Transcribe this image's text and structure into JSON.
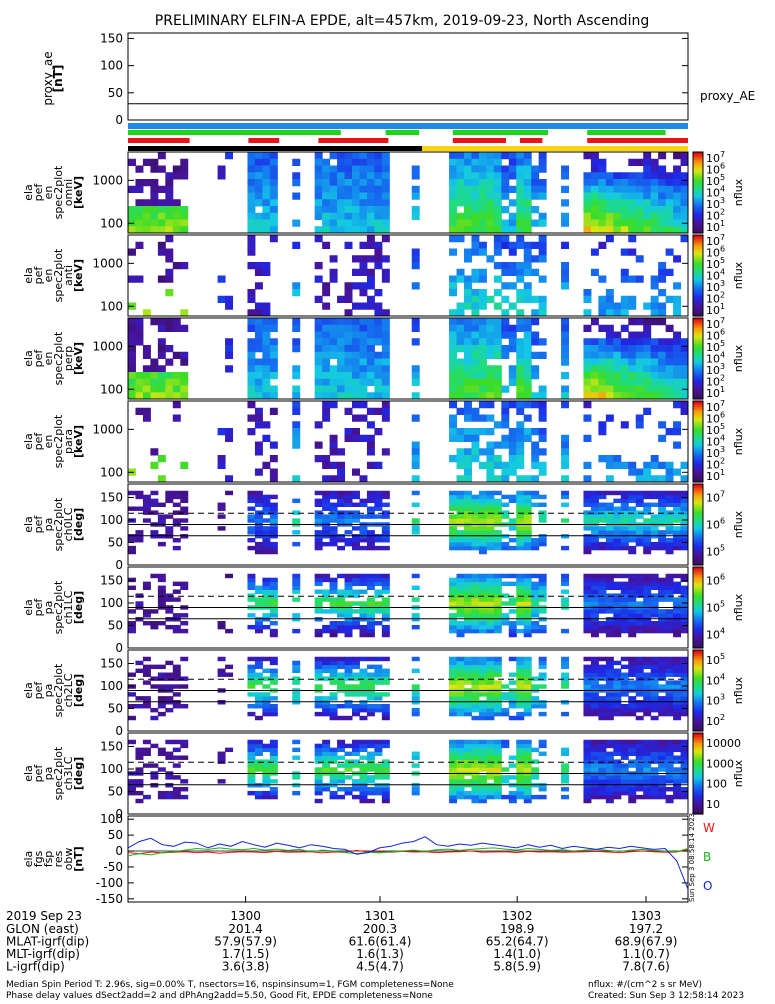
{
  "title": "PRELIMINARY ELFIN-A EPDE, alt=457km, 2019-09-23, North Ascending",
  "colors": {
    "red": "#e8141a",
    "green": "#22d418",
    "blue": "#1e8ce6",
    "black": "#000000",
    "yellow": "#ffd400",
    "trace_w": "#e8141a",
    "trace_b": "#1ab41a",
    "trace_o": "#1424d8"
  },
  "chart_data": [
    {
      "type": "line",
      "panel": "proxy_ae",
      "ylabel_lines": [
        "proxy_ae",
        "[nT]"
      ],
      "yticks": [
        "150",
        "100",
        "50",
        "0"
      ],
      "ylim": [
        0,
        150
      ],
      "series": [
        {
          "name": "proxy_AE",
          "values": [
            30,
            30
          ]
        }
      ]
    },
    {
      "type": "heatmap",
      "panel": "ela_pef_en_spec2plot_omni",
      "ylabel_lines": [
        "ela",
        "pef",
        "en",
        "spec2plot",
        "omni",
        "[keV]"
      ],
      "yticks": [
        "1000",
        "100"
      ],
      "scale": "log",
      "colorbar": {
        "label": "nflux",
        "ticks": [
          "10",
          "10",
          "10",
          "10",
          "10",
          "10",
          "10"
        ],
        "exps": [
          "1",
          "2",
          "3",
          "4",
          "5",
          "6",
          "7"
        ]
      }
    },
    {
      "type": "heatmap",
      "panel": "ela_pef_en_spec2plot_anti",
      "ylabel_lines": [
        "ela",
        "pef",
        "en",
        "spec2plot",
        "anti",
        "[keV]"
      ],
      "yticks": [
        "1000",
        "100"
      ],
      "scale": "log",
      "colorbar": {
        "label": "nflux",
        "ticks": [
          "10",
          "10",
          "10",
          "10",
          "10",
          "10",
          "10"
        ],
        "exps": [
          "1",
          "2",
          "3",
          "4",
          "5",
          "6",
          "7"
        ]
      }
    },
    {
      "type": "heatmap",
      "panel": "ela_pef_en_spec2plot_perp",
      "ylabel_lines": [
        "ela",
        "pef",
        "en",
        "spec2plot",
        "perp",
        "[keV]"
      ],
      "yticks": [
        "1000",
        "100"
      ],
      "scale": "log",
      "colorbar": {
        "label": "nflux",
        "ticks": [
          "10",
          "10",
          "10",
          "10",
          "10",
          "10",
          "10"
        ],
        "exps": [
          "1",
          "2",
          "3",
          "4",
          "5",
          "6",
          "7"
        ]
      }
    },
    {
      "type": "heatmap",
      "panel": "ela_pef_en_spec2plot_para",
      "ylabel_lines": [
        "ela",
        "pef",
        "en",
        "spec2plot",
        "para",
        "[keV]"
      ],
      "yticks": [
        "1000",
        "100"
      ],
      "scale": "log",
      "colorbar": {
        "label": "nflux",
        "ticks": [
          "10",
          "10",
          "10",
          "10",
          "10",
          "10",
          "10"
        ],
        "exps": [
          "1",
          "2",
          "3",
          "4",
          "5",
          "6",
          "7"
        ]
      }
    },
    {
      "type": "heatmap",
      "panel": "ela_pef_pa_spec2plot_ch0LC",
      "ylabel_lines": [
        "ela",
        "pef",
        "pa",
        "spec2plot",
        "ch0LC",
        "[deg]"
      ],
      "yticks": [
        "150",
        "100",
        "50",
        "0"
      ],
      "ylim": [
        0,
        180
      ],
      "colorbar": {
        "label": "nflux",
        "ticks": [
          "10",
          "10",
          "10"
        ],
        "exps": [
          "7",
          "6",
          "5"
        ]
      }
    },
    {
      "type": "heatmap",
      "panel": "ela_pef_pa_spec2plot_ch1LC",
      "ylabel_lines": [
        "ela",
        "pef",
        "pa",
        "spec2plot",
        "ch1LC",
        "[deg]"
      ],
      "yticks": [
        "150",
        "100",
        "50",
        "0"
      ],
      "ylim": [
        0,
        180
      ],
      "colorbar": {
        "label": "nflux",
        "ticks": [
          "10",
          "10",
          "10"
        ],
        "exps": [
          "6",
          "5",
          "4"
        ]
      }
    },
    {
      "type": "heatmap",
      "panel": "ela_pef_pa_spec2plot_ch2LC",
      "ylabel_lines": [
        "ela",
        "pef",
        "pa",
        "spec2plot",
        "ch2LC",
        "[deg]"
      ],
      "yticks": [
        "150",
        "100",
        "50",
        "0"
      ],
      "ylim": [
        0,
        180
      ],
      "colorbar": {
        "label": "nflux",
        "ticks": [
          "10",
          "10",
          "10",
          "10"
        ],
        "exps": [
          "5",
          "4",
          "3",
          "2"
        ]
      }
    },
    {
      "type": "heatmap",
      "panel": "ela_pef_pa_spec2plot_ch3LC",
      "ylabel_lines": [
        "ela",
        "pef",
        "pa",
        "spec2plot",
        "ch3LC",
        "[deg]"
      ],
      "yticks": [
        "150",
        "100",
        "50",
        "0"
      ],
      "ylim": [
        0,
        180
      ],
      "colorbar": {
        "label": "nflux",
        "ticks": [
          "10000",
          "1000",
          "100",
          "10"
        ],
        "exps": []
      }
    },
    {
      "type": "line",
      "panel": "ela_fgs_fsp_res_obw",
      "ylabel_lines": [
        "ela",
        "fgs",
        "fsp",
        "res",
        "obw",
        "[nT]"
      ],
      "yticks": [
        "100",
        "50",
        "0",
        "-50",
        "-100",
        "-150"
      ],
      "ylim": [
        -160,
        110
      ],
      "series": [
        {
          "name": "W",
          "values": [
            -5,
            -8,
            -3,
            -6,
            -4,
            -2,
            -5,
            -3,
            -7,
            -4,
            -2,
            -3,
            -5,
            -1,
            -4,
            -3,
            -2,
            -6,
            -3,
            -4,
            2,
            -3,
            -2,
            -4,
            -1,
            -3,
            -2,
            -5,
            -3,
            -2,
            0,
            -4,
            -3,
            -2,
            -5,
            -1,
            -3,
            -2,
            -4,
            -3,
            -2,
            -1,
            -3,
            -5,
            -2,
            0,
            -2,
            -4,
            -3,
            5
          ]
        },
        {
          "name": "B",
          "values": [
            -15,
            -8,
            -12,
            -5,
            -2,
            3,
            8,
            5,
            10,
            6,
            4,
            8,
            3,
            6,
            2,
            5,
            -2,
            3,
            0,
            -5,
            -8,
            -4,
            -6,
            -2,
            0,
            3,
            -1,
            4,
            6,
            2,
            5,
            8,
            10,
            6,
            3,
            8,
            5,
            2,
            4,
            0,
            3,
            5,
            2,
            -1,
            3,
            5,
            2,
            0,
            -2,
            8
          ]
        },
        {
          "name": "O",
          "values": [
            10,
            30,
            40,
            20,
            15,
            28,
            25,
            10,
            22,
            15,
            30,
            20,
            12,
            25,
            18,
            10,
            20,
            15,
            8,
            5,
            -10,
            -5,
            10,
            15,
            25,
            30,
            45,
            20,
            15,
            22,
            18,
            25,
            20,
            15,
            10,
            20,
            12,
            18,
            8,
            15,
            10,
            5,
            12,
            8,
            15,
            10,
            5,
            8,
            -30,
            -120
          ]
        }
      ],
      "legend": [
        "W",
        "B",
        "O"
      ]
    }
  ],
  "xaxis": {
    "date": "2019 Sep 23",
    "row_labels": [
      "GLON (east)",
      "MLAT-igrf(dip)",
      "MLT-igrf(dip)",
      "L-igrf(dip)"
    ],
    "columns": [
      {
        "time": "1300",
        "vals": [
          "201.4",
          "57.9(57.9)",
          "1.7(1.5)",
          "3.6(3.8)"
        ]
      },
      {
        "time": "1301",
        "vals": [
          "200.3",
          "61.6(61.4)",
          "1.6(1.3)",
          "4.5(4.7)"
        ]
      },
      {
        "time": "1302",
        "vals": [
          "198.9",
          "65.2(64.7)",
          "1.4(1.0)",
          "5.8(5.9)"
        ]
      },
      {
        "time": "1303",
        "vals": [
          "197.2",
          "68.9(67.9)",
          "1.1(0.7)",
          "7.8(7.6)"
        ]
      }
    ]
  },
  "footer": {
    "line1": "Median Spin Period T: 2.96s, sig=0.00% T, nsectors=16, nspinsinsum=1, FGM completeness=None",
    "line2": "Phase delay values dSect2add=2 and dPhAng2add=5.50, Good Fit, EPDE completeness=None",
    "units": "nflux: #/(cm^2 s sr MeV)",
    "created": "Created: Sun Sep  3 12:58:14 2023",
    "stamp": "Sun Sep  3 08:58:14 2023"
  }
}
